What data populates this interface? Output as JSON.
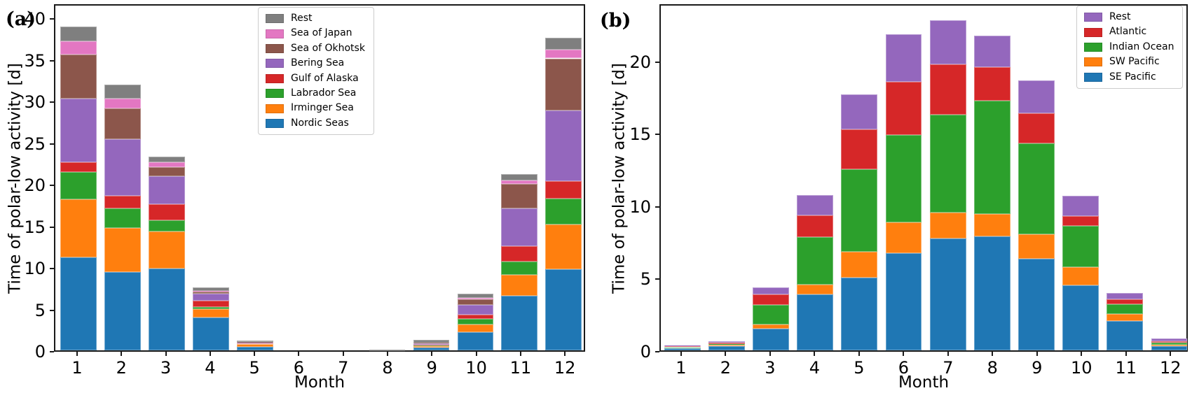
{
  "figure": {
    "background": "#ffffff"
  },
  "chart_data": [
    {
      "panel_label": "(a)",
      "type": "bar",
      "stacked": true,
      "title": "",
      "xlabel": "Month",
      "ylabel": "Time of polar-low activity [d]",
      "categories": [
        "1",
        "2",
        "3",
        "4",
        "5",
        "6",
        "7",
        "8",
        "9",
        "10",
        "11",
        "12"
      ],
      "yticks": [
        0,
        5,
        10,
        15,
        20,
        25,
        30,
        35,
        40
      ],
      "ylim": [
        0,
        41.8
      ],
      "grid": false,
      "legend_position": "upper-center-left-inside",
      "series": [
        {
          "name": "Nordic Seas",
          "color": "#1f77b4",
          "values": [
            11.3,
            9.5,
            9.9,
            4.0,
            0.45,
            0,
            0,
            0.06,
            0.35,
            2.2,
            6.6,
            9.8
          ]
        },
        {
          "name": "Irminger Sea",
          "color": "#ff7f0e",
          "values": [
            7.0,
            5.3,
            4.5,
            1.0,
            0.3,
            0,
            0,
            0,
            0.18,
            0.9,
            2.6,
            5.5
          ]
        },
        {
          "name": "Labrador Sea",
          "color": "#2ca02c",
          "values": [
            3.3,
            2.4,
            1.4,
            0.3,
            0.07,
            0,
            0,
            0,
            0.14,
            0.7,
            1.6,
            3.1
          ]
        },
        {
          "name": "Gulf of Alaska",
          "color": "#d62728",
          "values": [
            1.2,
            1.5,
            1.9,
            0.75,
            0.05,
            0,
            0,
            0,
            0.05,
            0.5,
            1.8,
            2.1
          ]
        },
        {
          "name": "Bering Sea",
          "color": "#9467bd",
          "values": [
            7.7,
            6.9,
            3.4,
            0.8,
            0.1,
            0,
            0,
            0,
            0.12,
            1.2,
            4.6,
            8.6
          ]
        },
        {
          "name": "Sea of Okhotsk",
          "color": "#8c564b",
          "values": [
            5.4,
            3.7,
            1.1,
            0.3,
            0.05,
            0,
            0,
            0,
            0.08,
            0.7,
            3.0,
            6.3
          ]
        },
        {
          "name": "Sea of Japan",
          "color": "#e377c2",
          "values": [
            1.6,
            1.2,
            0.6,
            0.05,
            0,
            0,
            0,
            0,
            0,
            0.2,
            0.4,
            1.1
          ]
        },
        {
          "name": "Rest",
          "color": "#7f7f7f",
          "values": [
            1.8,
            1.7,
            0.7,
            0.45,
            0.15,
            0,
            0,
            0.04,
            0.38,
            0.5,
            0.8,
            1.4
          ]
        }
      ]
    },
    {
      "panel_label": "(b)",
      "type": "bar",
      "stacked": true,
      "title": "",
      "xlabel": "Month",
      "ylabel": "Time of polar-low activity [d]",
      "categories": [
        "1",
        "2",
        "3",
        "4",
        "5",
        "6",
        "7",
        "8",
        "9",
        "10",
        "11",
        "12"
      ],
      "yticks": [
        0,
        5,
        10,
        15,
        20
      ],
      "ylim": [
        0,
        24.0
      ],
      "grid": false,
      "legend_position": "upper-right-inside",
      "series": [
        {
          "name": "SE Pacific",
          "color": "#1f77b4",
          "values": [
            0.15,
            0.3,
            1.5,
            3.9,
            5.05,
            6.75,
            7.8,
            7.95,
            6.4,
            4.55,
            2.05,
            0.3
          ]
        },
        {
          "name": "SW Pacific",
          "color": "#ff7f0e",
          "values": [
            0.05,
            0.08,
            0.3,
            0.7,
            1.8,
            2.15,
            1.8,
            1.55,
            1.7,
            1.25,
            0.5,
            0.1
          ]
        },
        {
          "name": "Indian Ocean",
          "color": "#2ca02c",
          "values": [
            0.02,
            0.08,
            1.35,
            3.3,
            5.75,
            6.1,
            6.8,
            7.9,
            6.3,
            2.85,
            0.65,
            0.15
          ]
        },
        {
          "name": "Atlantic",
          "color": "#d62728",
          "values": [
            0.05,
            0.1,
            0.75,
            1.5,
            2.8,
            3.7,
            3.5,
            2.3,
            2.1,
            0.7,
            0.35,
            0.1
          ]
        },
        {
          "name": "Rest",
          "color": "#9467bd",
          "values": [
            0.05,
            0.05,
            0.5,
            1.4,
            2.4,
            3.3,
            3.1,
            2.2,
            2.3,
            1.4,
            0.45,
            0.2
          ]
        }
      ]
    }
  ]
}
